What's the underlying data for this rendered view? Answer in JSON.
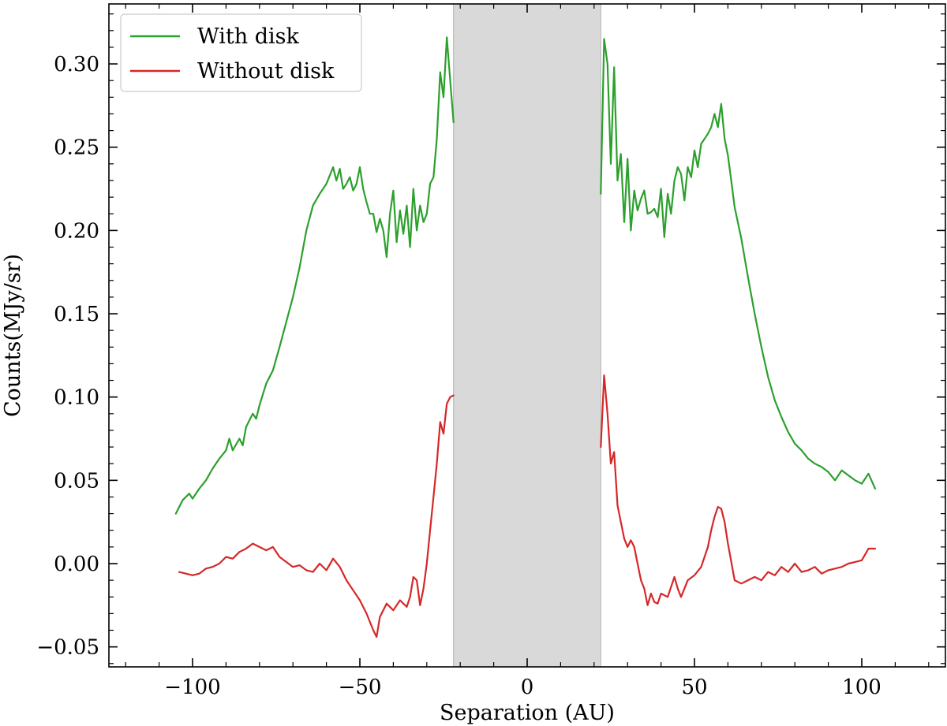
{
  "chart_data": {
    "type": "line",
    "title": "",
    "xlabel": "Separation (AU)",
    "ylabel": "Counts(MJy/sr)",
    "xlim": [
      -125,
      125
    ],
    "ylim": [
      -0.062,
      0.336
    ],
    "x_ticks": [
      -100,
      -50,
      0,
      50,
      100
    ],
    "x_tick_labels": [
      "−100",
      "−50",
      "0",
      "50",
      "100"
    ],
    "y_ticks": [
      -0.05,
      0.0,
      0.05,
      0.1,
      0.15,
      0.2,
      0.25,
      0.3
    ],
    "y_tick_labels": [
      "−0.05",
      "0.00",
      "0.05",
      "0.10",
      "0.15",
      "0.20",
      "0.25",
      "0.30"
    ],
    "grid": false,
    "legend_position": "top-left",
    "shaded_region": {
      "x": [
        -22,
        22
      ],
      "color": "#d9d9d9"
    },
    "series": [
      {
        "name": "With disk",
        "color": "#2ca02c",
        "segments": [
          {
            "x": [
              -105,
              -103,
              -101,
              -100,
              -98,
              -96,
              -94,
              -92,
              -90,
              -89,
              -88,
              -86,
              -85,
              -84,
              -82,
              -81,
              -80,
              -78,
              -76,
              -74,
              -72,
              -70,
              -68,
              -66,
              -64,
              -62,
              -60,
              -58,
              -57,
              -56,
              -55,
              -54,
              -53,
              -52,
              -51,
              -50,
              -49,
              -48,
              -47,
              -46,
              -45,
              -44,
              -43,
              -42,
              -41,
              -40,
              -39,
              -38,
              -37,
              -36,
              -35,
              -34,
              -33,
              -32,
              -31,
              -30,
              -29,
              -28,
              -27,
              -26,
              -25,
              -24,
              -23,
              -22
            ],
            "y": [
              0.03,
              0.038,
              0.042,
              0.039,
              0.045,
              0.05,
              0.057,
              0.063,
              0.068,
              0.075,
              0.068,
              0.075,
              0.071,
              0.082,
              0.09,
              0.087,
              0.095,
              0.108,
              0.116,
              0.13,
              0.145,
              0.16,
              0.178,
              0.2,
              0.215,
              0.222,
              0.228,
              0.238,
              0.23,
              0.237,
              0.225,
              0.228,
              0.232,
              0.224,
              0.228,
              0.238,
              0.225,
              0.217,
              0.21,
              0.21,
              0.199,
              0.207,
              0.2,
              0.184,
              0.21,
              0.224,
              0.193,
              0.212,
              0.198,
              0.215,
              0.19,
              0.225,
              0.2,
              0.215,
              0.205,
              0.21,
              0.228,
              0.232,
              0.255,
              0.295,
              0.28,
              0.316,
              0.29,
              0.265
            ]
          },
          {
            "x": [
              22,
              23,
              24,
              25,
              26,
              27,
              28,
              29,
              30,
              31,
              32,
              33,
              34,
              35,
              36,
              37,
              38,
              39,
              40,
              41,
              42,
              43,
              44,
              45,
              46,
              47,
              48,
              49,
              50,
              51,
              52,
              53,
              54,
              55,
              56,
              57,
              58,
              59,
              60,
              61,
              62,
              64,
              66,
              68,
              70,
              72,
              74,
              76,
              78,
              80,
              82,
              84,
              86,
              88,
              90,
              92,
              94,
              96,
              98,
              100,
              102,
              104
            ],
            "y": [
              0.222,
              0.315,
              0.3,
              0.24,
              0.298,
              0.23,
              0.246,
              0.205,
              0.243,
              0.2,
              0.224,
              0.212,
              0.219,
              0.224,
              0.21,
              0.211,
              0.213,
              0.208,
              0.225,
              0.196,
              0.222,
              0.21,
              0.23,
              0.238,
              0.234,
              0.218,
              0.238,
              0.232,
              0.248,
              0.238,
              0.252,
              0.255,
              0.258,
              0.262,
              0.27,
              0.262,
              0.276,
              0.255,
              0.245,
              0.23,
              0.214,
              0.195,
              0.172,
              0.15,
              0.13,
              0.112,
              0.098,
              0.088,
              0.079,
              0.072,
              0.068,
              0.063,
              0.06,
              0.058,
              0.055,
              0.05,
              0.056,
              0.053,
              0.05,
              0.048,
              0.054,
              0.045
            ]
          }
        ]
      },
      {
        "name": "Without disk",
        "color": "#d62728",
        "segments": [
          {
            "x": [
              -104,
              -102,
              -100,
              -98,
              -96,
              -94,
              -92,
              -90,
              -88,
              -86,
              -84,
              -82,
              -80,
              -78,
              -76,
              -74,
              -72,
              -70,
              -68,
              -66,
              -64,
              -62,
              -60,
              -58,
              -56,
              -54,
              -52,
              -50,
              -48,
              -46,
              -45,
              -44,
              -42,
              -40,
              -38,
              -36,
              -35,
              -34,
              -33,
              -32,
              -31,
              -30,
              -29,
              -28,
              -27,
              -26,
              -25,
              -24,
              -23,
              -22
            ],
            "y": [
              -0.005,
              -0.006,
              -0.007,
              -0.006,
              -0.003,
              -0.002,
              0.0,
              0.004,
              0.003,
              0.007,
              0.009,
              0.012,
              0.01,
              0.008,
              0.01,
              0.004,
              0.001,
              -0.002,
              -0.001,
              -0.004,
              -0.005,
              0.0,
              -0.004,
              0.003,
              -0.002,
              -0.01,
              -0.016,
              -0.022,
              -0.03,
              -0.04,
              -0.044,
              -0.032,
              -0.024,
              -0.028,
              -0.022,
              -0.026,
              -0.02,
              -0.008,
              -0.01,
              -0.025,
              -0.015,
              0.0,
              0.02,
              0.04,
              0.06,
              0.085,
              0.078,
              0.096,
              0.1,
              0.101
            ]
          },
          {
            "x": [
              22,
              23,
              24,
              25,
              26,
              27,
              28,
              29,
              30,
              31,
              32,
              33,
              34,
              35,
              36,
              37,
              38,
              39,
              40,
              42,
              44,
              45,
              46,
              48,
              50,
              52,
              54,
              55,
              56,
              57,
              58,
              59,
              60,
              62,
              64,
              66,
              68,
              70,
              72,
              74,
              76,
              78,
              80,
              82,
              84,
              86,
              88,
              90,
              92,
              94,
              96,
              98,
              100,
              102,
              104
            ],
            "y": [
              0.07,
              0.113,
              0.09,
              0.06,
              0.067,
              0.035,
              0.025,
              0.015,
              0.01,
              0.014,
              0.01,
              0.0,
              -0.01,
              -0.015,
              -0.025,
              -0.018,
              -0.023,
              -0.024,
              -0.018,
              -0.02,
              -0.008,
              -0.015,
              -0.02,
              -0.01,
              -0.007,
              -0.002,
              0.01,
              0.02,
              0.028,
              0.034,
              0.033,
              0.025,
              0.012,
              -0.01,
              -0.012,
              -0.01,
              -0.008,
              -0.01,
              -0.005,
              -0.007,
              -0.002,
              -0.005,
              0.0,
              -0.005,
              -0.004,
              -0.002,
              -0.006,
              -0.004,
              -0.003,
              -0.002,
              0.0,
              0.001,
              0.002,
              0.009,
              0.009
            ]
          }
        ]
      }
    ]
  }
}
